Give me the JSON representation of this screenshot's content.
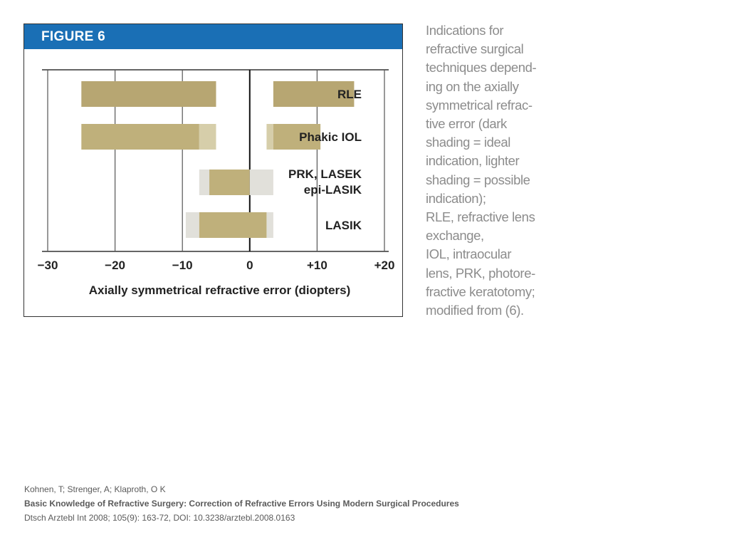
{
  "figure": {
    "header": "FIGURE 6"
  },
  "chart_data": {
    "type": "bar",
    "orientation": "horizontal-range",
    "xlabel": "Axially symmetrical refractive error (diopters)",
    "xlim": [
      -30,
      20
    ],
    "xticks": [
      -30,
      -20,
      -10,
      0,
      10,
      20
    ],
    "xtick_labels": [
      "−30",
      "−20",
      "−10",
      "0",
      "+10",
      "+20"
    ],
    "grid": true,
    "colors": {
      "ideal": "#bfb07b",
      "ideal_dark": "#b7a672",
      "possible": "#d6ceaa",
      "possible_light": "#e1e0da"
    },
    "rows": [
      {
        "label_lines": [
          "RLE"
        ],
        "segments": [
          {
            "start": -25,
            "end": -5,
            "shade": "ideal_dark"
          },
          {
            "start": 3.5,
            "end": 15.5,
            "shade": "ideal_dark"
          }
        ]
      },
      {
        "label_lines": [
          "Phakic IOL"
        ],
        "segments": [
          {
            "start": -25,
            "end": -7.5,
            "shade": "ideal"
          },
          {
            "start": -7.5,
            "end": -5,
            "shade": "possible"
          },
          {
            "start": 2.5,
            "end": 3.5,
            "shade": "possible"
          },
          {
            "start": 3.5,
            "end": 10.5,
            "shade": "ideal"
          }
        ]
      },
      {
        "label_lines": [
          "PRK, LASEK",
          "epi-LASIK"
        ],
        "segments": [
          {
            "start": -7.5,
            "end": -6,
            "shade": "possible_light"
          },
          {
            "start": -6,
            "end": 0,
            "shade": "ideal"
          },
          {
            "start": 0,
            "end": 3.5,
            "shade": "possible_light"
          }
        ]
      },
      {
        "label_lines": [
          "LASIK"
        ],
        "segments": [
          {
            "start": -9.5,
            "end": -7.5,
            "shade": "possible_light"
          },
          {
            "start": -7.5,
            "end": 2.5,
            "shade": "ideal"
          },
          {
            "start": 2.5,
            "end": 3.5,
            "shade": "possible_light"
          }
        ]
      }
    ]
  },
  "caption": {
    "text": "Indications for\nrefractive surgical\ntechniques depend-\ning on the axially\nsymmetrical refrac-\ntive error (dark\nshading = ideal\nindication, lighter\nshading = possible\nindication);\nRLE, refractive lens\nexchange,\nIOL, intraocular\nlens, PRK, photore-\nfractive keratotomy;\nmodified from (6)."
  },
  "citation": {
    "authors": "Kohnen, T; Strenger, A; Klaproth, O K",
    "title": "Basic Knowledge of Refractive Surgery: Correction of Refractive Errors Using Modern Surgical Procedures",
    "source": "Dtsch Arztebl Int 2008; 105(9): 163-72, DOI: 10.3238/arztebl.2008.0163"
  }
}
